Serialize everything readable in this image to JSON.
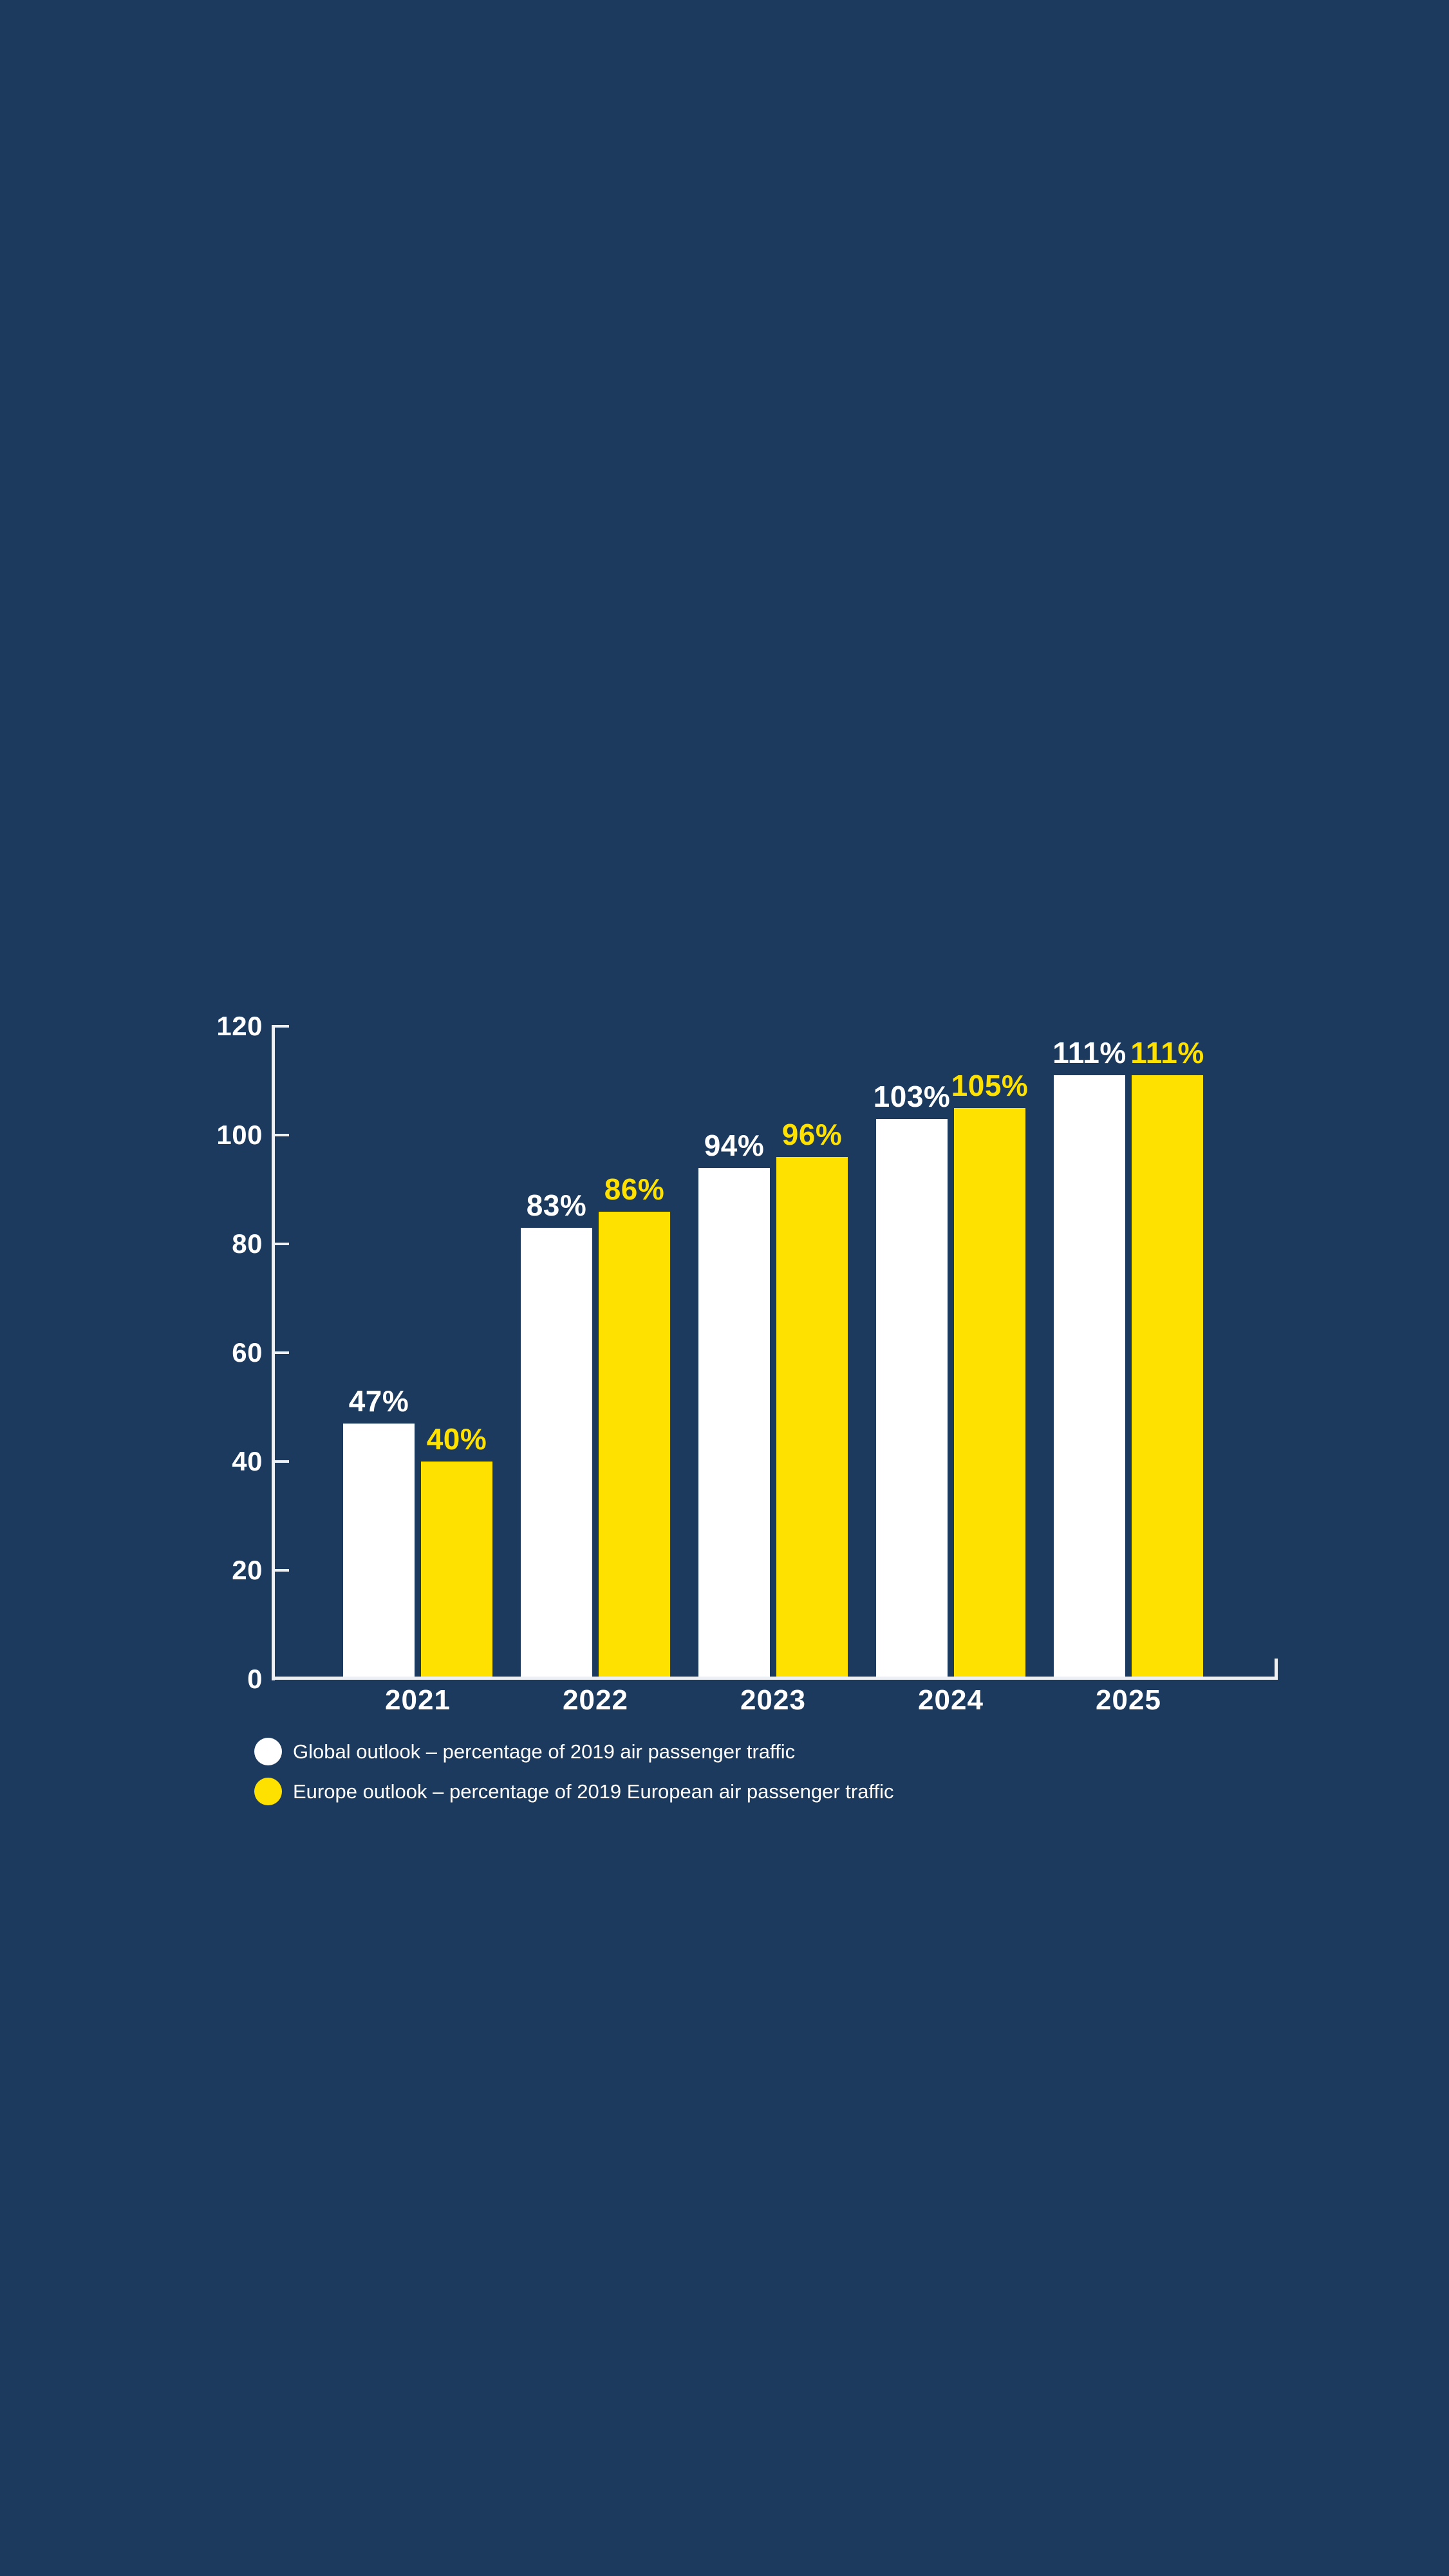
{
  "colors": {
    "background": "#1b3a5e",
    "global_series": "#ffffff",
    "europe_series": "#ffe100",
    "axis": "#edf1f5",
    "text": "#ffffff"
  },
  "chart_data": {
    "type": "bar",
    "title": "",
    "xlabel": "",
    "ylabel": "",
    "categories": [
      "2021",
      "2022",
      "2023",
      "2024",
      "2025"
    ],
    "series": [
      {
        "name": "Global outlook – percentage of 2019 air passenger traffic",
        "color": "#ffffff",
        "values": [
          47,
          83,
          94,
          103,
          111
        ],
        "labels": [
          "47%",
          "83%",
          "94%",
          "103%",
          "111%"
        ]
      },
      {
        "name": "Europe outlook – percentage of 2019 European air passenger traffic",
        "color": "#ffe100",
        "values": [
          40,
          86,
          96,
          105,
          111
        ],
        "labels": [
          "40%",
          "86%",
          "96%",
          "105%",
          "111%"
        ]
      }
    ],
    "value_suffix": "%",
    "y_ticks": [
      0,
      20,
      40,
      60,
      80,
      100,
      120
    ],
    "ylim": [
      0,
      120
    ],
    "grid": false,
    "legend_position": "bottom-left",
    "value_labels": true
  }
}
